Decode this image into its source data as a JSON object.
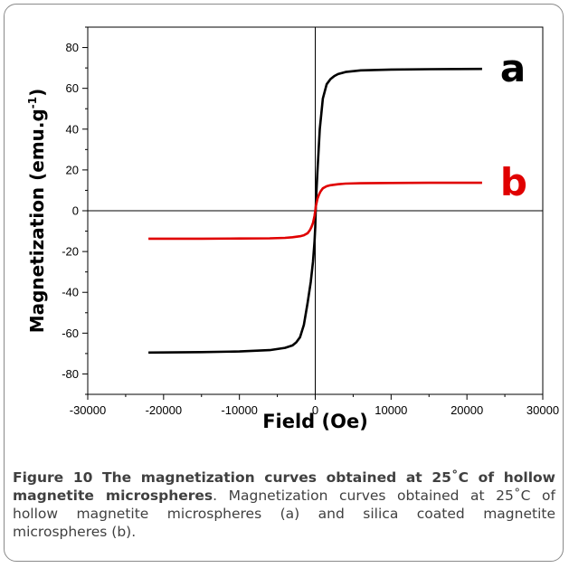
{
  "chart_data": {
    "type": "line",
    "xlabel": "Field (Oe)",
    "ylabel": "Magnetization (emu.g",
    "ylabel_sup": "-1",
    "ylabel_close": ")",
    "xlim": [
      -30000,
      30000
    ],
    "ylim": [
      -90,
      90
    ],
    "xticks": [
      -30000,
      -20000,
      -10000,
      0,
      10000,
      20000,
      30000
    ],
    "xtick_labels": [
      "-30000",
      "-20000",
      "-10000",
      "0",
      "10000",
      "20000",
      "30000"
    ],
    "yticks": [
      -80,
      -60,
      -40,
      -20,
      0,
      20,
      40,
      60,
      80
    ],
    "ytick_labels": [
      "-80",
      "-60",
      "-40",
      "-20",
      "0",
      "20",
      "40",
      "60",
      "80"
    ],
    "grid": false,
    "series": [
      {
        "name": "a",
        "color": "#000000",
        "x": [
          -22000,
          -15000,
          -10000,
          -6000,
          -4000,
          -3000,
          -2500,
          -2000,
          -1500,
          -1000,
          -600,
          -300,
          -100,
          0,
          100,
          300,
          600,
          1000,
          1500,
          2000,
          2500,
          3000,
          4000,
          6000,
          10000,
          15000,
          22000
        ],
        "y": [
          -69.5,
          -69.3,
          -69,
          -68.3,
          -67.2,
          -66,
          -64.5,
          -62,
          -56,
          -45,
          -35,
          -25,
          -15,
          -8,
          5,
          20,
          40,
          55,
          62,
          64.5,
          66,
          67,
          68,
          68.8,
          69.2,
          69.4,
          69.5
        ]
      },
      {
        "name": "b",
        "color": "#e00000",
        "x": [
          -22000,
          -15000,
          -10000,
          -6000,
          -4000,
          -3000,
          -2000,
          -1500,
          -1000,
          -700,
          -500,
          -300,
          -100,
          0,
          100,
          300,
          500,
          700,
          1000,
          1500,
          2000,
          3000,
          4000,
          6000,
          10000,
          15000,
          22000
        ],
        "y": [
          -13.7,
          -13.7,
          -13.6,
          -13.5,
          -13.3,
          -13,
          -12.5,
          -12,
          -11,
          -9.5,
          -8,
          -6,
          -2.5,
          0,
          2.5,
          6,
          8,
          9.5,
          11,
          12,
          12.5,
          13,
          13.3,
          13.5,
          13.6,
          13.7,
          13.7
        ]
      }
    ]
  },
  "caption": {
    "title": "Figure 10 The magnetization curves obtained at 25˚C of hollow magnetite microspheres",
    "text": ". Magnetization curves obtained at 25˚C of hollow magnetite microspheres (a) and silica coated magnetite microspheres (b)."
  }
}
